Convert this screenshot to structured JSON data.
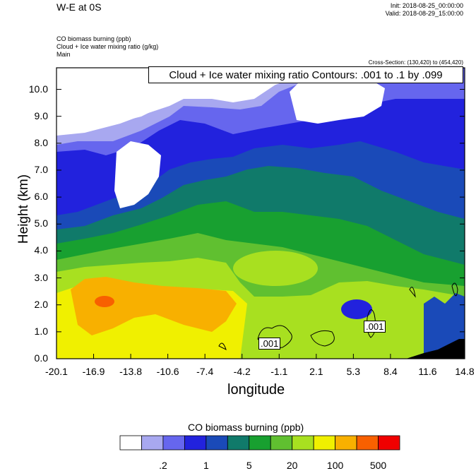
{
  "header": {
    "title": "W-E at 0S",
    "init": "Init: 2018-08-25_00:00:00",
    "valid": "Valid: 2018-08-29_15:00:00",
    "field1": "CO biomass burning   (ppb)",
    "field2": "Cloud + Ice water mixing ratio   (g/kg)",
    "field3": "Main",
    "cross_section": "Cross-Section: (130,420) to (454,420)"
  },
  "chart_data": {
    "type": "heatmap",
    "ylabel": "Height (km)",
    "xlabel": "longitude",
    "ylim": [
      0,
      10.8
    ],
    "xlim": [
      -20.1,
      14.8
    ],
    "y_ticks": [
      "0.0",
      "1.0",
      "2.0",
      "3.0",
      "4.0",
      "5.0",
      "6.0",
      "7.0",
      "8.0",
      "9.0",
      "10.0"
    ],
    "x_ticks": [
      "-20.1",
      "-16.9",
      "-13.8",
      "-10.6",
      "-7.4",
      "-4.2",
      "-1.1",
      "2.1",
      "5.3",
      "8.4",
      "11.6",
      "14.8"
    ],
    "contour_label": "Cloud + Ice water mixing ratio Contours: .001 to .1 by .099",
    "contour_value_labels": [
      ".001",
      ".001"
    ],
    "colorbar": {
      "title": "CO biomass burning  (ppb)",
      "tick_labels": [
        ".2",
        "1",
        "5",
        "20",
        "100",
        "500"
      ],
      "colors": [
        "#ffffff",
        "#a8a8f0",
        "#6666ee",
        "#2222dd",
        "#1a4ab8",
        "#107a6a",
        "#18a030",
        "#60c030",
        "#a8e020",
        "#f0f000",
        "#f8b000",
        "#f86000",
        "#f00000"
      ]
    },
    "zones": [
      {
        "level": 1,
        "x": [
          -20.1,
          14.8
        ],
        "y": [
          7.7,
          8.4
        ],
        "color_index": 1
      },
      {
        "level": 2,
        "x": [
          -20.1,
          14.8
        ],
        "y": [
          5.0,
          7.7
        ],
        "color_index": 2
      },
      {
        "level": 3,
        "x": [
          -20.1,
          14.8
        ],
        "y": [
          3.0,
          5.0
        ],
        "color_index": 6
      },
      {
        "level": 4,
        "x": [
          -20.1,
          -4.2
        ],
        "y": [
          0,
          3.0
        ],
        "color_index": 9
      },
      {
        "level": 5,
        "x": [
          -18.5,
          -5.5
        ],
        "y": [
          1.2,
          2.9
        ],
        "color_index": 10
      }
    ]
  }
}
